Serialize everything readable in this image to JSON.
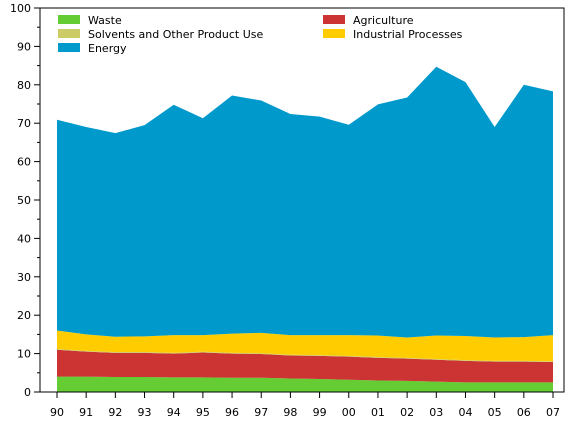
{
  "chart_data": {
    "type": "area",
    "stacked": true,
    "categories": [
      "90",
      "91",
      "92",
      "93",
      "94",
      "95",
      "96",
      "97",
      "98",
      "99",
      "00",
      "01",
      "02",
      "03",
      "04",
      "05",
      "06",
      "07"
    ],
    "ylim": [
      0,
      100
    ],
    "yticks": [
      0,
      10,
      20,
      30,
      40,
      50,
      60,
      70,
      80,
      90,
      100
    ],
    "grid": false,
    "legend_position": "top",
    "series": [
      {
        "name": "Waste",
        "color": "#66cc33",
        "values": [
          4.0,
          4.0,
          3.9,
          3.9,
          3.8,
          3.8,
          3.7,
          3.7,
          3.5,
          3.4,
          3.2,
          3.0,
          2.9,
          2.7,
          2.5,
          2.5,
          2.5,
          2.5
        ]
      },
      {
        "name": "Agriculture",
        "color": "#cc3333",
        "values": [
          7.0,
          6.5,
          6.3,
          6.3,
          6.2,
          6.5,
          6.3,
          6.2,
          6.0,
          6.0,
          6.0,
          5.9,
          5.8,
          5.7,
          5.6,
          5.4,
          5.4,
          5.3
        ]
      },
      {
        "name": "Solvents and Other Product Use",
        "color": "#cccc66",
        "values": [
          0.2,
          0.2,
          0.2,
          0.2,
          0.2,
          0.2,
          0.2,
          0.2,
          0.2,
          0.2,
          0.2,
          0.2,
          0.2,
          0.2,
          0.2,
          0.2,
          0.2,
          0.2
        ]
      },
      {
        "name": "Industrial Processes",
        "color": "#ffcc00",
        "values": [
          4.8,
          4.3,
          4.0,
          4.1,
          4.6,
          4.3,
          5.0,
          5.3,
          5.1,
          5.2,
          5.4,
          5.6,
          5.3,
          6.1,
          6.3,
          6.1,
          6.2,
          6.8
        ]
      },
      {
        "name": "Energy",
        "color": "#0099cc",
        "values": [
          54.9,
          54.0,
          53.0,
          55.0,
          60.0,
          56.5,
          62.0,
          60.5,
          57.6,
          56.9,
          54.8,
          60.2,
          62.5,
          70.0,
          66.1,
          54.8,
          65.7,
          63.5
        ]
      }
    ],
    "legend": {
      "left_column": [
        "Waste",
        "Solvents and Other Product Use",
        "Energy"
      ],
      "right_column": [
        "Agriculture",
        "Industrial Processes"
      ]
    }
  }
}
